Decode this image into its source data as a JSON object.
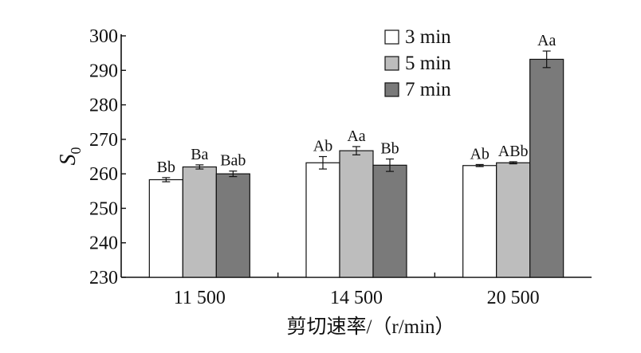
{
  "chart_data": {
    "type": "bar",
    "categories": [
      "11 500",
      "14 500",
      "20 500"
    ],
    "series": [
      {
        "name": "3 min",
        "color": "#ffffff",
        "values": [
          258.3,
          263.2,
          262.4
        ],
        "errors": [
          0.6,
          1.8,
          0.3
        ],
        "labels": [
          "Bb",
          "Ab",
          "Ab"
        ]
      },
      {
        "name": "5 min",
        "color": "#bdbdbd",
        "values": [
          262.0,
          266.7,
          263.2
        ],
        "errors": [
          0.6,
          1.2,
          0.3
        ],
        "labels": [
          "Ba",
          "Aa",
          "ABb"
        ]
      },
      {
        "name": "7 min",
        "color": "#7a7a7a",
        "values": [
          260.0,
          262.5,
          293.2
        ],
        "errors": [
          0.8,
          1.8,
          2.4
        ],
        "labels": [
          "Bab",
          "Bb",
          "Aa"
        ]
      }
    ],
    "xlabel": "剪切速率/（r/min）",
    "ylabel_main": "S",
    "ylabel_sub": "0",
    "ylim": [
      230,
      300
    ],
    "yticks": [
      230,
      240,
      250,
      260,
      270,
      280,
      290,
      300
    ],
    "legend_position": "top-center",
    "grid": false
  }
}
